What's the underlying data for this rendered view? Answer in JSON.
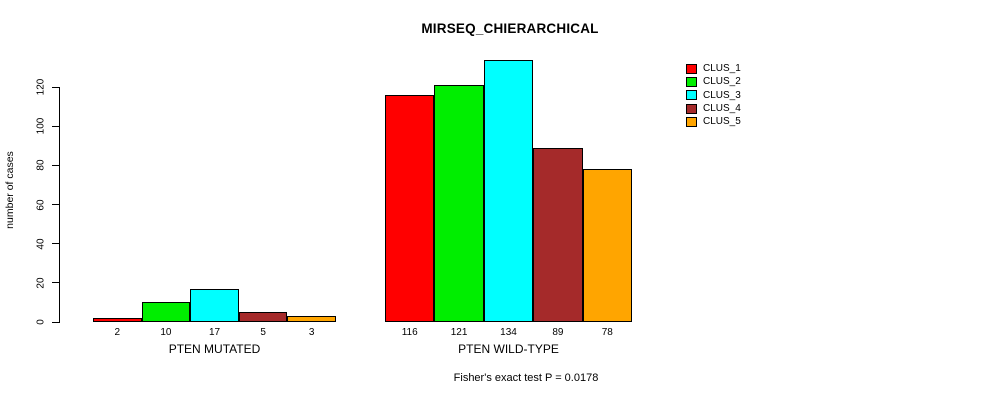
{
  "chart_data": {
    "type": "bar",
    "title": "MIRSEQ_CHIERARCHICAL",
    "xlabel": "",
    "ylabel": "number of cases",
    "categories": [
      "PTEN MUTATED",
      "PTEN WILD-TYPE"
    ],
    "series": [
      {
        "name": "CLUS_1",
        "color": "#FF0000",
        "values": [
          2,
          116
        ]
      },
      {
        "name": "CLUS_2",
        "color": "#00EE00",
        "values": [
          10,
          121
        ]
      },
      {
        "name": "CLUS_3",
        "color": "#00FFFF",
        "values": [
          17,
          134
        ]
      },
      {
        "name": "CLUS_4",
        "color": "#A52A2A",
        "values": [
          5,
          89
        ]
      },
      {
        "name": "CLUS_5",
        "color": "#FFA500",
        "values": [
          3,
          78
        ]
      }
    ],
    "yticks": [
      0,
      20,
      40,
      60,
      80,
      100,
      120
    ],
    "ylim": [
      0,
      135
    ],
    "bar_value_labels": true,
    "grid": false,
    "legend_position": "right"
  },
  "annotation": "Fisher's exact test P = 0.0178"
}
